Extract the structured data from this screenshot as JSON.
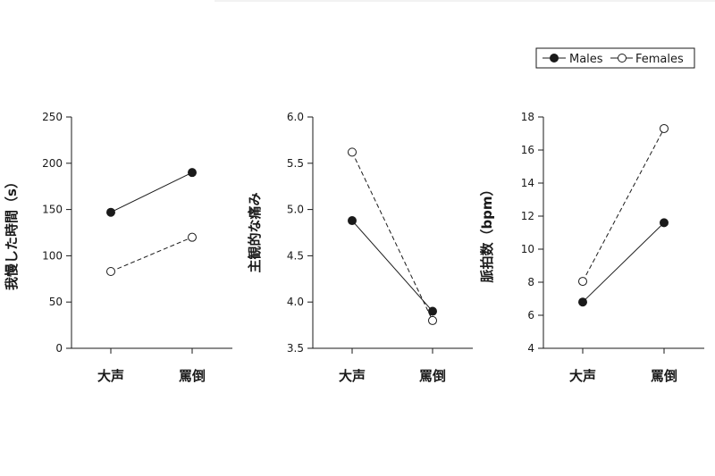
{
  "legend": {
    "male_label": "Males",
    "female_label": "Females"
  },
  "chart_data": [
    {
      "type": "line",
      "categories": [
        "大声",
        "罵倒"
      ],
      "ylabel": "我慢した時間（s）",
      "ylim": [
        0,
        250
      ],
      "yticks": [
        "0",
        "50",
        "100",
        "150",
        "200",
        "250"
      ],
      "series": [
        {
          "name": "Males",
          "values": [
            147,
            190
          ],
          "style": "solid",
          "marker": "filled"
        },
        {
          "name": "Females",
          "values": [
            83,
            120
          ],
          "style": "dashed",
          "marker": "open"
        }
      ]
    },
    {
      "type": "line",
      "categories": [
        "大声",
        "罵倒"
      ],
      "ylabel": "主観的な痛み",
      "ylim": [
        3.5,
        6.0
      ],
      "yticks": [
        "3.5",
        "4.0",
        "4.5",
        "5.0",
        "5.5",
        "6.0"
      ],
      "series": [
        {
          "name": "Males",
          "values": [
            4.88,
            3.9
          ],
          "style": "solid",
          "marker": "filled"
        },
        {
          "name": "Females",
          "values": [
            5.62,
            3.8
          ],
          "style": "dashed",
          "marker": "open"
        }
      ]
    },
    {
      "type": "line",
      "categories": [
        "大声",
        "罵倒"
      ],
      "ylabel": "脈拍数（bpm）",
      "ylim": [
        4,
        18
      ],
      "yticks": [
        "4",
        "6",
        "8",
        "10",
        "12",
        "14",
        "16",
        "18"
      ],
      "series": [
        {
          "name": "Males",
          "values": [
            6.8,
            11.6
          ],
          "style": "solid",
          "marker": "filled"
        },
        {
          "name": "Females",
          "values": [
            8.05,
            17.3
          ],
          "style": "dashed",
          "marker": "open"
        }
      ]
    }
  ],
  "colors": {
    "line": "#1a1a1a",
    "background": "#ffffff"
  }
}
